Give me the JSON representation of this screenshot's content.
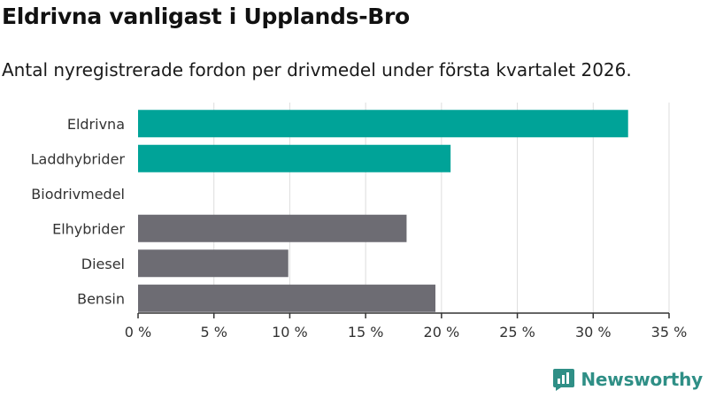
{
  "chart_data": {
    "type": "bar",
    "orientation": "horizontal",
    "title": "Eldrivna vanligast i Upplands-Bro",
    "subtitle": "Antal nyregistrerade fordon per drivmedel under första kvartalet 2026.",
    "categories": [
      "Eldrivna",
      "Laddhybrider",
      "Biodrivmedel",
      "Elhybrider",
      "Diesel",
      "Bensin"
    ],
    "values": [
      32.3,
      20.6,
      0,
      17.7,
      9.9,
      19.6
    ],
    "bar_colors": [
      "#00a398",
      "#00a398",
      "#00a398",
      "#6d6c73",
      "#6d6c73",
      "#6d6c73"
    ],
    "xlabel": "",
    "ylabel": "",
    "xlim": [
      0,
      35
    ],
    "xticks": [
      0,
      5,
      10,
      15,
      20,
      25,
      30,
      35
    ],
    "xtick_labels": [
      "0 %",
      "5 %",
      "10 %",
      "15 %",
      "20 %",
      "25 %",
      "30 %",
      "35 %"
    ],
    "grid": "vertical"
  },
  "brand": {
    "name": "Newsworthy",
    "logo_icon": "newsworthy-logo-icon",
    "color": "#2f8f86"
  }
}
